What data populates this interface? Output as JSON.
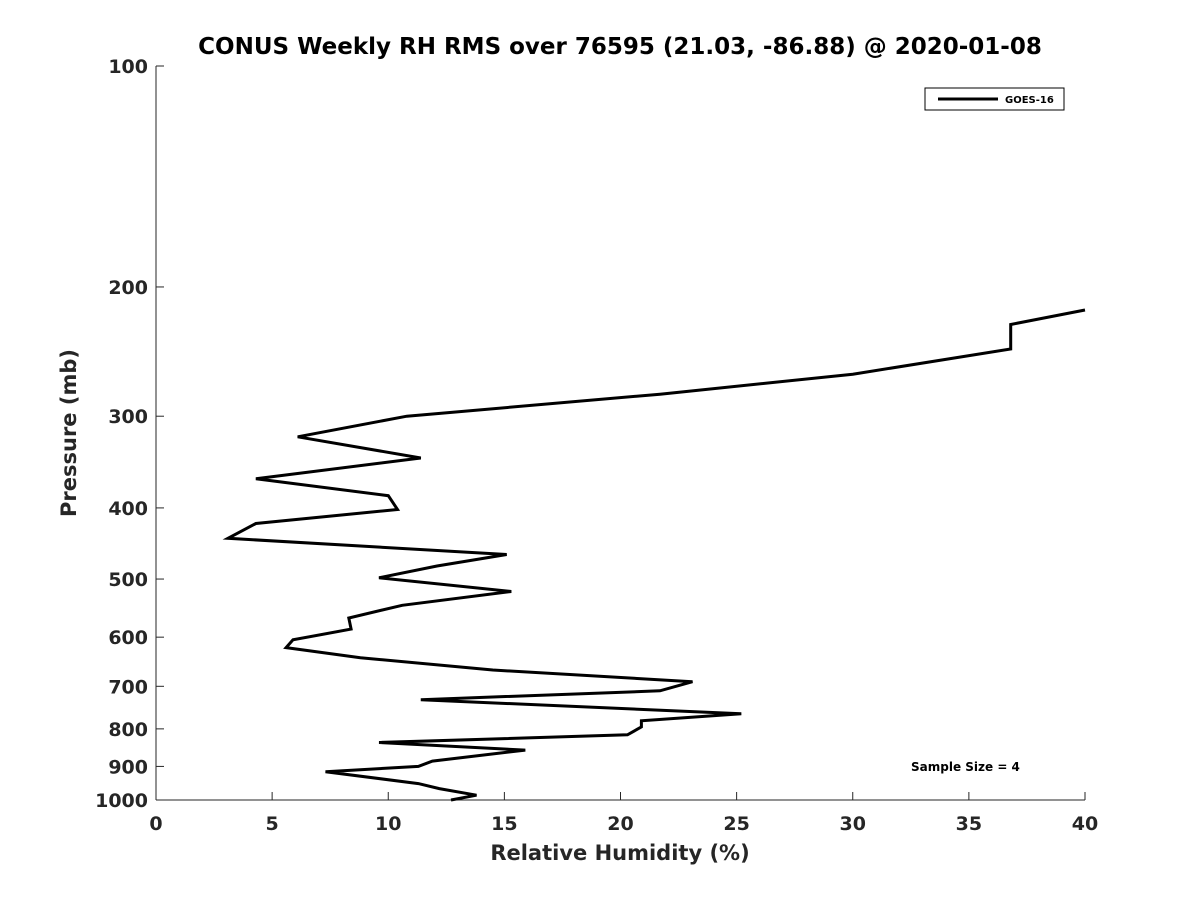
{
  "chart_data": {
    "type": "line",
    "title": "CONUS Weekly RH RMS over 76595 (21.03, -86.88) @ 2020-01-08",
    "xlabel": "Relative Humidity (%)",
    "ylabel": "Pressure (mb)",
    "xlim": [
      0,
      40
    ],
    "ylim": [
      100,
      1000
    ],
    "yscale": "log",
    "y_reversed": true,
    "x_ticks": [
      0,
      5,
      10,
      15,
      20,
      25,
      30,
      35,
      40
    ],
    "y_ticks": [
      100,
      200,
      300,
      400,
      500,
      600,
      700,
      800,
      900,
      1000
    ],
    "grid": false,
    "legend_position": "top-right",
    "annotation": "Sample Size = 4",
    "series": [
      {
        "name": "GOES-16",
        "color": "#000000",
        "points": [
          {
            "x": 40.0,
            "y": 215
          },
          {
            "x": 36.8,
            "y": 225
          },
          {
            "x": 36.8,
            "y": 243
          },
          {
            "x": 30.0,
            "y": 263
          },
          {
            "x": 21.7,
            "y": 280
          },
          {
            "x": 10.8,
            "y": 300
          },
          {
            "x": 6.1,
            "y": 320
          },
          {
            "x": 11.4,
            "y": 342
          },
          {
            "x": 4.3,
            "y": 365
          },
          {
            "x": 10.0,
            "y": 385
          },
          {
            "x": 10.4,
            "y": 402
          },
          {
            "x": 4.3,
            "y": 420
          },
          {
            "x": 3.1,
            "y": 440
          },
          {
            "x": 15.1,
            "y": 463
          },
          {
            "x": 12.1,
            "y": 480
          },
          {
            "x": 9.6,
            "y": 498
          },
          {
            "x": 15.3,
            "y": 520
          },
          {
            "x": 10.6,
            "y": 543
          },
          {
            "x": 8.3,
            "y": 565
          },
          {
            "x": 8.4,
            "y": 585
          },
          {
            "x": 5.9,
            "y": 605
          },
          {
            "x": 5.6,
            "y": 620
          },
          {
            "x": 8.8,
            "y": 640
          },
          {
            "x": 14.5,
            "y": 665
          },
          {
            "x": 23.1,
            "y": 690
          },
          {
            "x": 21.7,
            "y": 710
          },
          {
            "x": 11.4,
            "y": 730
          },
          {
            "x": 25.2,
            "y": 763
          },
          {
            "x": 20.9,
            "y": 780
          },
          {
            "x": 20.9,
            "y": 795
          },
          {
            "x": 20.3,
            "y": 815
          },
          {
            "x": 9.6,
            "y": 835
          },
          {
            "x": 15.9,
            "y": 855
          },
          {
            "x": 11.9,
            "y": 885
          },
          {
            "x": 11.3,
            "y": 900
          },
          {
            "x": 7.3,
            "y": 915
          },
          {
            "x": 11.3,
            "y": 950
          },
          {
            "x": 12.2,
            "y": 965
          },
          {
            "x": 13.8,
            "y": 985
          },
          {
            "x": 12.7,
            "y": 1000
          }
        ]
      }
    ]
  }
}
